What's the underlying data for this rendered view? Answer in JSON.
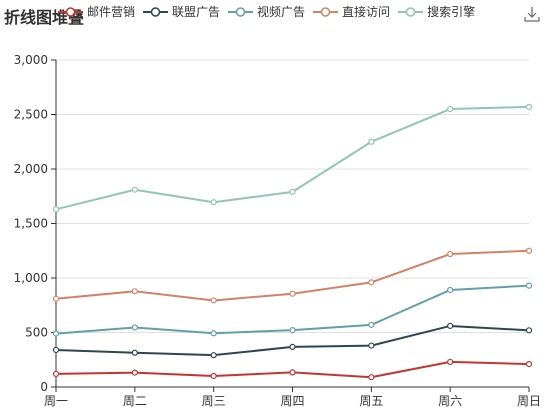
{
  "toolbar": {
    "save_icon": "save-as-image-icon"
  },
  "chart_data": {
    "type": "line",
    "title": "折线图堆叠",
    "categories": [
      "周一",
      "周二",
      "周三",
      "周四",
      "周五",
      "周六",
      "周日"
    ],
    "ylim": [
      0,
      3000
    ],
    "yticks": [
      0,
      500,
      1000,
      1500,
      2000,
      2500,
      3000
    ],
    "ytick_labels": [
      "0",
      "500",
      "1,000",
      "1,500",
      "2,000",
      "2,500",
      "3,000"
    ],
    "grid": true,
    "legend_position": "top",
    "series": [
      {
        "name": "邮件营销",
        "color": "#c23531",
        "values": [
          120,
          132,
          101,
          134,
          90,
          230,
          210
        ]
      },
      {
        "name": "联盟广告",
        "color": "#2f4554",
        "values": [
          220,
          182,
          191,
          234,
          290,
          330,
          310
        ]
      },
      {
        "name": "视频广告",
        "color": "#61a0a8",
        "values": [
          150,
          232,
          201,
          154,
          190,
          330,
          410
        ]
      },
      {
        "name": "直接访问",
        "color": "#d48265",
        "values": [
          320,
          332,
          301,
          334,
          390,
          330,
          320
        ]
      },
      {
        "name": "搜索引擎",
        "color": "#91c7ae",
        "values": [
          820,
          932,
          901,
          934,
          1290,
          1330,
          1320
        ]
      }
    ],
    "stacked": true
  }
}
